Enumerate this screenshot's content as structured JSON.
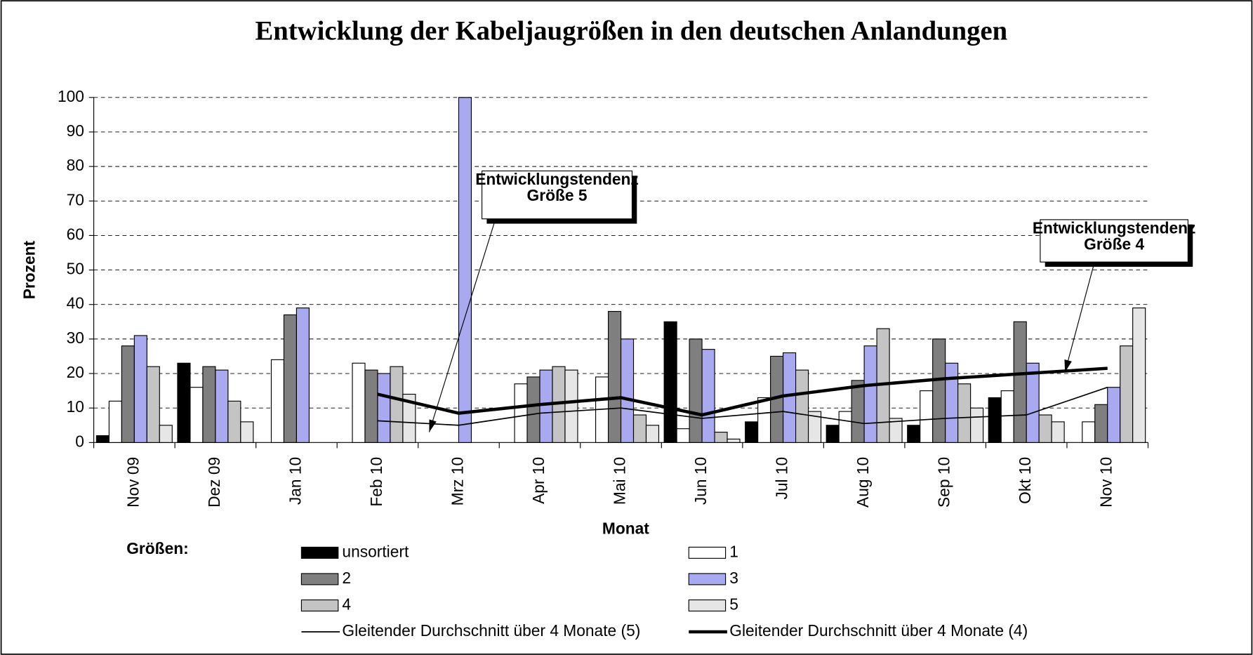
{
  "chart_data": {
    "type": "bar",
    "title": "Entwicklung der Kabeljaugrößen in den deutschen Anlandungen",
    "ylabel": "Prozent",
    "xlabel": "Monat",
    "legend_title": "Größen:",
    "categories": [
      "Nov 09",
      "Dez 09",
      "Jan 10",
      "Feb 10",
      "Mrz 10",
      "Apr 10",
      "Mai 10",
      "Jun 10",
      "Jul 10",
      "Aug 10",
      "Sep 10",
      "Okt 10",
      "Nov 10"
    ],
    "ylim": [
      0,
      100
    ],
    "yticks": [
      0,
      10,
      20,
      30,
      40,
      50,
      60,
      70,
      80,
      90,
      100
    ],
    "grid": true,
    "series": [
      {
        "name": "unsortiert",
        "color": "#000000",
        "values": [
          2,
          23,
          null,
          null,
          null,
          null,
          null,
          35,
          6,
          5,
          5,
          13,
          null
        ]
      },
      {
        "name": "1",
        "color": "#ffffff",
        "values": [
          12,
          16,
          24,
          23,
          null,
          17,
          19,
          4,
          13,
          9,
          15,
          15,
          6
        ]
      },
      {
        "name": "2",
        "color": "#7f7f7f",
        "values": [
          28,
          22,
          37,
          21,
          null,
          19,
          38,
          30,
          25,
          18,
          30,
          35,
          11
        ]
      },
      {
        "name": "3",
        "color": "#a9a9f0",
        "values": [
          31,
          21,
          39,
          20,
          100,
          21,
          30,
          27,
          26,
          28,
          23,
          23,
          16
        ]
      },
      {
        "name": "4",
        "color": "#c4c4c4",
        "values": [
          22,
          12,
          null,
          22,
          null,
          22,
          8,
          3,
          21,
          33,
          17,
          8,
          28
        ]
      },
      {
        "name": "5",
        "color": "#e6e6e6",
        "values": [
          5,
          6,
          null,
          14,
          null,
          21,
          5,
          1,
          9,
          7,
          10,
          6,
          39
        ]
      },
      {
        "name": "Gleitender Durchschnitt über 4 Monate (5)",
        "type": "line",
        "color": "#000000",
        "width": 1.5,
        "values": [
          null,
          null,
          null,
          6.3,
          5,
          8.5,
          10,
          7,
          9,
          5.5,
          7,
          8,
          16
        ]
      },
      {
        "name": "Gleitender Durchschnitt über 4 Monate (4)",
        "type": "line",
        "color": "#000000",
        "width": 4,
        "values": [
          null,
          null,
          null,
          14,
          8.5,
          11,
          13,
          8,
          13.5,
          16.5,
          18.5,
          20,
          21.5
        ]
      }
    ],
    "annotations": [
      {
        "lines": [
          "Entwicklungstendenz",
          "Größe  5"
        ]
      },
      {
        "lines": [
          "Entwicklungstendenz",
          "Größe  4"
        ]
      }
    ]
  }
}
